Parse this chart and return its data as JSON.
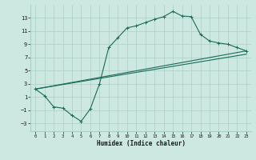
{
  "title": "",
  "xlabel": "Humidex (Indice chaleur)",
  "ylabel": "",
  "xlim": [
    -0.5,
    23.5
  ],
  "ylim": [
    -4.2,
    15.0
  ],
  "yticks": [
    -3,
    -1,
    1,
    3,
    5,
    7,
    9,
    11,
    13
  ],
  "xticks": [
    0,
    1,
    2,
    3,
    4,
    5,
    6,
    7,
    8,
    9,
    10,
    11,
    12,
    13,
    14,
    15,
    16,
    17,
    18,
    19,
    20,
    21,
    22,
    23
  ],
  "bg_color": "#cce8e0",
  "line_color": "#1a6b5a",
  "grid_color": "#aacfc5",
  "line1_x": [
    0,
    1,
    2,
    3,
    4,
    5,
    6,
    7,
    8,
    9,
    10,
    11,
    12,
    13,
    14,
    15,
    16,
    17,
    18,
    19,
    20,
    21,
    22,
    23
  ],
  "line1_y": [
    2.2,
    1.2,
    -0.5,
    -0.7,
    -1.8,
    -2.7,
    -0.8,
    3.0,
    8.5,
    10.0,
    11.5,
    11.8,
    12.3,
    12.8,
    13.2,
    14.0,
    13.3,
    13.2,
    10.5,
    9.5,
    9.2,
    9.0,
    8.5,
    8.0
  ],
  "line2_x": [
    0,
    23
  ],
  "line2_y": [
    2.2,
    8.0
  ],
  "line3_x": [
    0,
    23
  ],
  "line3_y": [
    2.2,
    7.5
  ]
}
